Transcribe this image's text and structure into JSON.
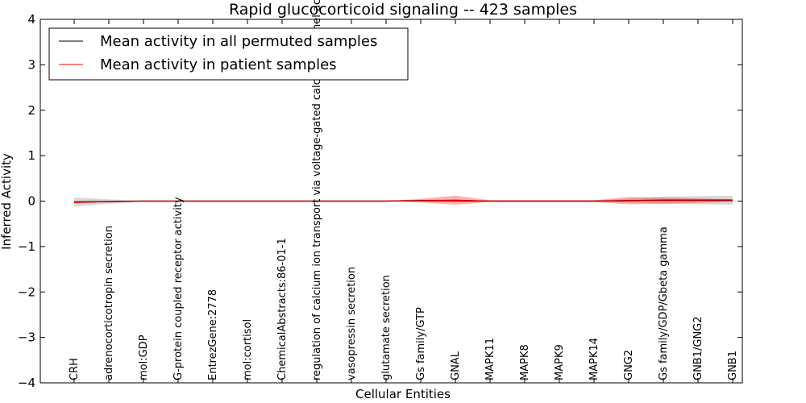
{
  "chart_data": {
    "type": "line",
    "title": "Rapid glucocorticoid signaling -- 423 samples",
    "xlabel": "Cellular Entities",
    "ylabel": "Inferred Activity",
    "ylim": [
      -4,
      4
    ],
    "yticks": [
      "4",
      "3",
      "2",
      "1",
      "0",
      "−1",
      "−2",
      "−3",
      "−4"
    ],
    "ytick_values": [
      4,
      3,
      2,
      1,
      0,
      -1,
      -2,
      -3,
      -4
    ],
    "categories": [
      "CRH",
      "adrenocorticotropin secretion",
      "mol:GDP",
      "G-protein coupled receptor activity",
      "EntrezGene:2778",
      "mol:cortisol",
      "ChemicalAbstracts:86-01-1",
      "regulation of calcium ion transport via voltage-gated calcium channel activity",
      "vasopressin secretion",
      "glutamate secretion",
      "Gs family/GTP",
      "GNAL",
      "MAPK11",
      "MAPK8",
      "MAPK9",
      "MAPK14",
      "GNG2",
      "Gs family/GDP/Gbeta gamma",
      "GNB1/GNG2",
      "GNB1"
    ],
    "series": [
      {
        "name": "Mean activity in all permuted samples",
        "color": "#000000",
        "values": [
          -0.02,
          -0.01,
          0,
          0,
          0,
          0,
          0,
          0,
          0,
          0,
          0.01,
          0.01,
          0,
          0,
          0,
          0,
          0.01,
          0.02,
          0.02,
          0.02
        ],
        "band": [
          0.1,
          0.05,
          0.01,
          0,
          0,
          0,
          0,
          0,
          0,
          0,
          0.02,
          0.03,
          0.01,
          0.01,
          0.01,
          0.01,
          0.04,
          0.08,
          0.09,
          0.1
        ]
      },
      {
        "name": "Mean activity in patient samples",
        "color": "#ff0000",
        "values": [
          -0.03,
          -0.01,
          0,
          0,
          0,
          0,
          0,
          0,
          0,
          0,
          0.01,
          0.02,
          0,
          0,
          0,
          0,
          0.01,
          0.01,
          0.01,
          0.01
        ],
        "band": [
          0.02,
          0.01,
          0,
          0,
          0,
          0,
          0,
          0,
          0,
          0,
          0.04,
          0.1,
          0.02,
          0.02,
          0.02,
          0.02,
          0.08,
          0.07,
          0.05,
          0.03
        ]
      }
    ],
    "legend_position": "top-left"
  }
}
